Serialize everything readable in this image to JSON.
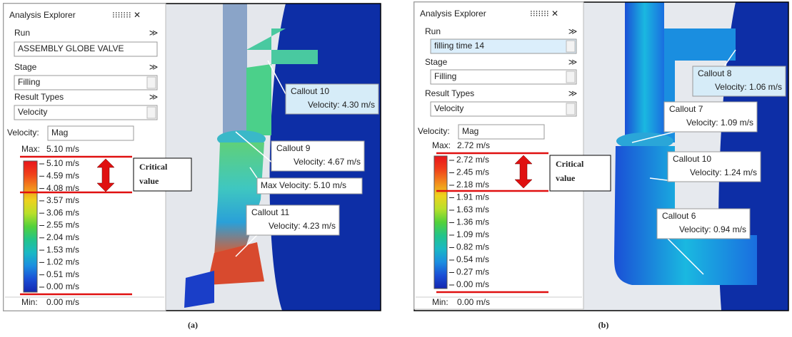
{
  "panels": [
    {
      "caption": "(a)",
      "explorer": {
        "title": "Analysis Explorer",
        "run_label": "Run",
        "run_value": "ASSEMBLY GLOBE VALVE",
        "stage_label": "Stage",
        "stage_value": "Filling",
        "result_types_label": "Result Types",
        "result_type_value": "Velocity",
        "quantity_label": "Velocity:",
        "quantity_value": "Mag",
        "max_label": "Max:",
        "max_value": "5.10 m/s",
        "legend": [
          "5.10 m/s",
          "4.59 m/s",
          "4.08 m/s",
          "3.57 m/s",
          "3.06 m/s",
          "2.55 m/s",
          "2.04 m/s",
          "1.53 m/s",
          "1.02 m/s",
          "0.51 m/s",
          "0.00 m/s"
        ],
        "min_label": "Min:",
        "min_value": "0.00 m/s"
      },
      "critical_label": [
        "Critical",
        "value"
      ],
      "callouts": [
        {
          "title": "Callout 10",
          "text": "Velocity: 4.30 m/s"
        },
        {
          "title": "Callout 9",
          "text": "Velocity: 4.67 m/s"
        },
        {
          "text": "Max Velocity: 5.10 m/s"
        },
        {
          "title": "Callout 11",
          "text": "Velocity: 4.23 m/s"
        }
      ]
    },
    {
      "caption": "(b)",
      "explorer": {
        "title": "Analysis Explorer",
        "run_label": "Run",
        "run_value": "filling time 14",
        "stage_label": "Stage",
        "stage_value": "Filling",
        "result_types_label": "Result Types",
        "result_type_value": "Velocity",
        "quantity_label": "Velocity:",
        "quantity_value": "Mag",
        "max_label": "Max:",
        "max_value": "2.72 m/s",
        "legend": [
          "2.72 m/s",
          "2.45 m/s",
          "2.18 m/s",
          "1.91 m/s",
          "1.63 m/s",
          "1.36 m/s",
          "1.09 m/s",
          "0.82 m/s",
          "0.54 m/s",
          "0.27 m/s",
          "0.00 m/s"
        ],
        "min_label": "Min:",
        "min_value": "0.00 m/s"
      },
      "critical_label": [
        "Critical",
        "value"
      ],
      "callouts": [
        {
          "title": "Callout 8",
          "text": "Velocity: 1.06 m/s"
        },
        {
          "title": "Callout 7",
          "text": "Velocity: 1.09 m/s"
        },
        {
          "title": "Callout 10",
          "text": "Velocity: 1.24 m/s"
        },
        {
          "title": "Callout 6",
          "text": "Velocity: 0.94 m/s"
        }
      ]
    }
  ]
}
